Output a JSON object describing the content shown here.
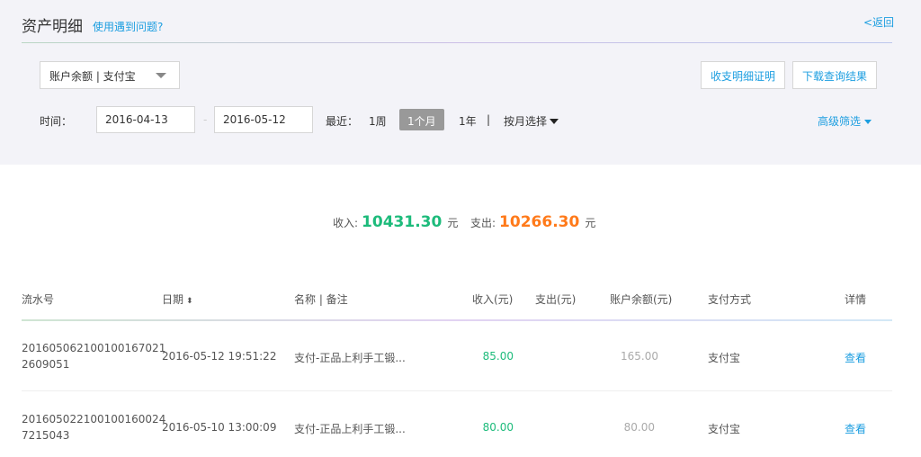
{
  "header": {
    "title": "资产明细",
    "help_link": "使用遇到问题?",
    "back_link": "<返回"
  },
  "filters": {
    "account_select": "账户余额 | 支付宝",
    "proof_button": "收支明细证明",
    "download_button": "下载查询结果",
    "time_label": "时间：",
    "start_date": "2016-04-13",
    "date_separator": "-",
    "end_date": "2016-05-12",
    "recent_label": "最近：",
    "recent_options": [
      "1周",
      "1个月",
      "1年"
    ],
    "recent_selected": "1个月",
    "divider": "|",
    "by_month": "按月选择",
    "advanced": "高级筛选"
  },
  "summary": {
    "income_label": "收入:",
    "income": "10431.30",
    "expense_label": "支出:",
    "expense": "10266.30",
    "unit": "元",
    "income_color": "#1dbb7b",
    "expense_color": "#ff7a1a"
  },
  "table": {
    "headers": [
      "流水号",
      "日期",
      "名称 | 备注",
      "收入(元)",
      "支出(元)",
      "账户余额(元)",
      "支付方式",
      "详情"
    ],
    "rows": [
      {
        "serial_1": "201605062100100167021",
        "serial_2": "2609051",
        "date": "2016-05-12 19:51:22",
        "name": "支付-正品上利手工锻...",
        "income": "85.00",
        "expense": "",
        "balance": "165.00",
        "method": "支付宝",
        "detail": "查看"
      },
      {
        "serial_1": "201605022100100160024",
        "serial_2": "7215043",
        "date": "2016-05-10 13:00:09",
        "name": "支付-正品上利手工锻...",
        "income": "80.00",
        "expense": "",
        "balance": "80.00",
        "method": "支付宝",
        "detail": "查看"
      }
    ]
  }
}
